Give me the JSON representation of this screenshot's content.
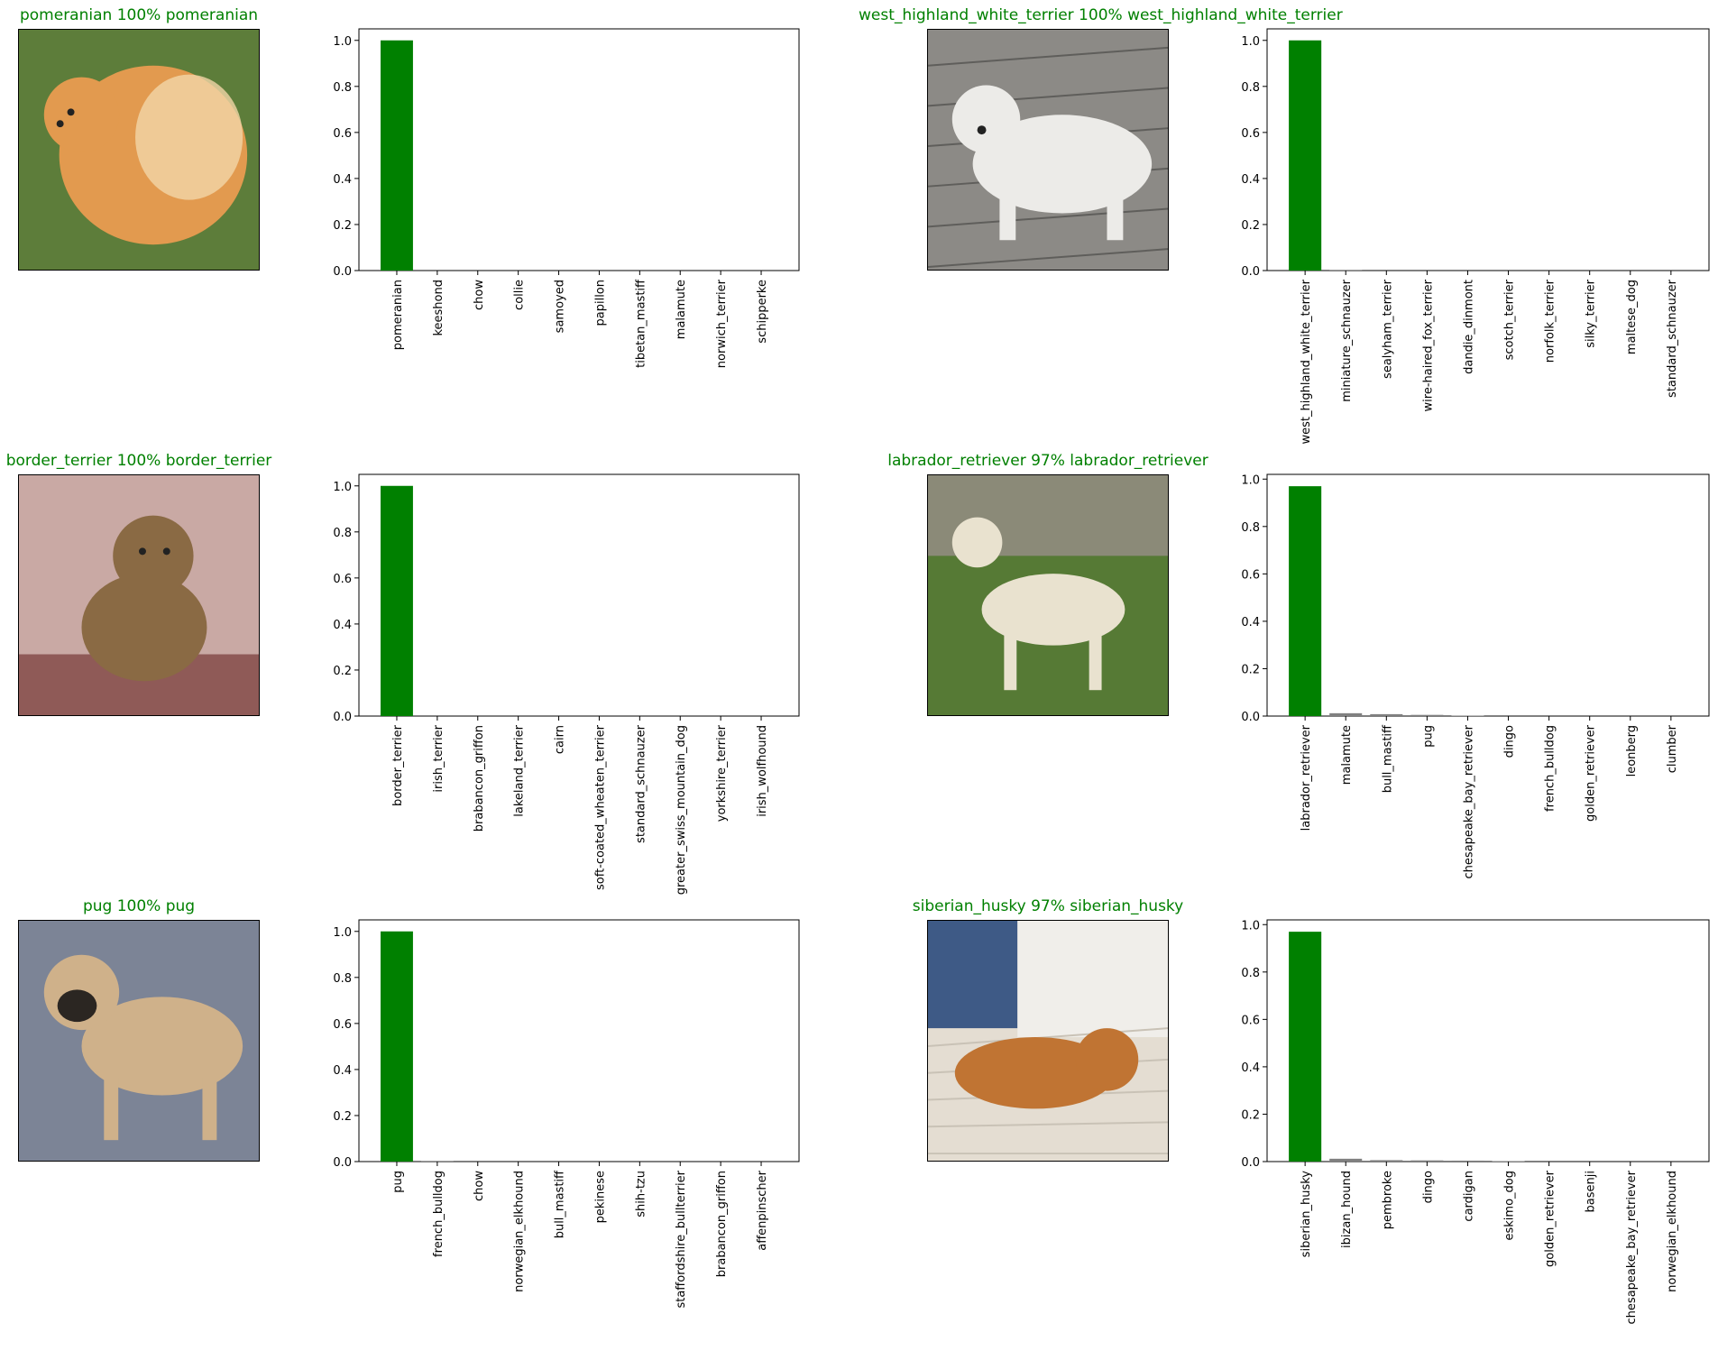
{
  "colors": {
    "correct": "#008000",
    "other": "#808080",
    "axis": "#000000"
  },
  "panels": [
    {
      "title": "pomeranian 100% pomeranian",
      "title_color": "#008000",
      "image_icon": "pomeranian-dog-photo",
      "image_palette": {
        "bg": "#5d7d3a",
        "fg": "#e29a4f",
        "accent": "#f3d6a8"
      },
      "chart_data": {
        "type": "bar",
        "categories": [
          "pomeranian",
          "keeshond",
          "chow",
          "collie",
          "samoyed",
          "papillon",
          "tibetan_mastiff",
          "malamute",
          "norwich_terrier",
          "schipperke"
        ],
        "values": [
          1.0,
          0.0,
          0.0,
          0.0,
          0.0,
          0.0,
          0.0,
          0.0,
          0.0,
          0.0
        ],
        "highlight_index": 0,
        "ylim": [
          0,
          1.05
        ],
        "yticks": [
          "0.0",
          "0.2",
          "0.4",
          "0.6",
          "0.8",
          "1.0"
        ],
        "grid": false
      }
    },
    {
      "title": "west_highland_white_terrier 100% west_highland_white_terrier",
      "title_color": "#008000",
      "image_icon": "west-highland-white-terrier-photo",
      "image_palette": {
        "bg": "#8c8a86",
        "fg": "#ecebe8",
        "accent": "#5f5e5b"
      },
      "chart_data": {
        "type": "bar",
        "categories": [
          "west_highland_white_terrier",
          "miniature_schnauzer",
          "sealyham_terrier",
          "wire-haired_fox_terrier",
          "dandie_dinmont",
          "scotch_terrier",
          "norfolk_terrier",
          "silky_terrier",
          "maltese_dog",
          "standard_schnauzer"
        ],
        "values": [
          1.0,
          0.003,
          0.0,
          0.0,
          0.0,
          0.0,
          0.0,
          0.0,
          0.0,
          0.0
        ],
        "highlight_index": 0,
        "ylim": [
          0,
          1.05
        ],
        "yticks": [
          "0.0",
          "0.2",
          "0.4",
          "0.6",
          "0.8",
          "1.0"
        ],
        "grid": false
      }
    },
    {
      "title": "border_terrier 100% border_terrier",
      "title_color": "#008000",
      "image_icon": "border-terrier-photo",
      "image_palette": {
        "bg": "#c9a9a4",
        "fg": "#8a6a44",
        "accent": "#8f5a57"
      },
      "chart_data": {
        "type": "bar",
        "categories": [
          "border_terrier",
          "irish_terrier",
          "brabancon_griffon",
          "lakeland_terrier",
          "cairn",
          "soft-coated_wheaten_terrier",
          "standard_schnauzer",
          "greater_swiss_mountain_dog",
          "yorkshire_terrier",
          "irish_wolfhound"
        ],
        "values": [
          1.0,
          0.0,
          0.0,
          0.0,
          0.0,
          0.0,
          0.0,
          0.0,
          0.0,
          0.0
        ],
        "highlight_index": 0,
        "ylim": [
          0,
          1.05
        ],
        "yticks": [
          "0.0",
          "0.2",
          "0.4",
          "0.6",
          "0.8",
          "1.0"
        ],
        "grid": false
      }
    },
    {
      "title": "labrador_retriever 97% labrador_retriever",
      "title_color": "#008000",
      "image_icon": "labrador-retriever-photo",
      "image_palette": {
        "bg": "#567a35",
        "fg": "#e9e2cf",
        "accent": "#8b8a78"
      },
      "chart_data": {
        "type": "bar",
        "categories": [
          "labrador_retriever",
          "malamute",
          "bull_mastiff",
          "pug",
          "chesapeake_bay_retriever",
          "dingo",
          "french_bulldog",
          "golden_retriever",
          "leonberg",
          "clumber"
        ],
        "values": [
          0.97,
          0.012,
          0.008,
          0.005,
          0.002,
          0.0,
          0.0,
          0.0,
          0.0,
          0.0
        ],
        "highlight_index": 0,
        "ylim": [
          0,
          1.02
        ],
        "yticks": [
          "0.0",
          "0.2",
          "0.4",
          "0.6",
          "0.8",
          "1.0"
        ],
        "grid": false
      }
    },
    {
      "title": "pug 100% pug",
      "title_color": "#008000",
      "image_icon": "pug-photo",
      "image_palette": {
        "bg": "#7c8496",
        "fg": "#cfb18a",
        "accent": "#2b2622"
      },
      "chart_data": {
        "type": "bar",
        "categories": [
          "pug",
          "french_bulldog",
          "chow",
          "norwegian_elkhound",
          "bull_mastiff",
          "pekinese",
          "shih-tzu",
          "staffordshire_bullterrier",
          "brabancon_griffon",
          "affenpinscher"
        ],
        "values": [
          1.0,
          0.003,
          0.0,
          0.0,
          0.0,
          0.0,
          0.0,
          0.0,
          0.0,
          0.0
        ],
        "highlight_index": 0,
        "ylim": [
          0,
          1.05
        ],
        "yticks": [
          "0.0",
          "0.2",
          "0.4",
          "0.6",
          "0.8",
          "1.0"
        ],
        "grid": false
      }
    },
    {
      "title": "siberian_husky 97% siberian_husky",
      "title_color": "#008000",
      "image_icon": "siberian-husky-photo",
      "image_palette": {
        "bg": "#e4ddd2",
        "fg": "#c07433",
        "accent": "#3e5a86"
      },
      "chart_data": {
        "type": "bar",
        "categories": [
          "siberian_husky",
          "ibizan_hound",
          "pembroke",
          "dingo",
          "cardigan",
          "eskimo_dog",
          "golden_retriever",
          "basenji",
          "chesapeake_bay_retriever",
          "norwegian_elkhound"
        ],
        "values": [
          0.97,
          0.012,
          0.006,
          0.005,
          0.004,
          0.002,
          0.0,
          0.0,
          0.0,
          0.0
        ],
        "highlight_index": 0,
        "ylim": [
          0,
          1.02
        ],
        "yticks": [
          "0.0",
          "0.2",
          "0.4",
          "0.6",
          "0.8",
          "1.0"
        ],
        "grid": false
      }
    }
  ]
}
